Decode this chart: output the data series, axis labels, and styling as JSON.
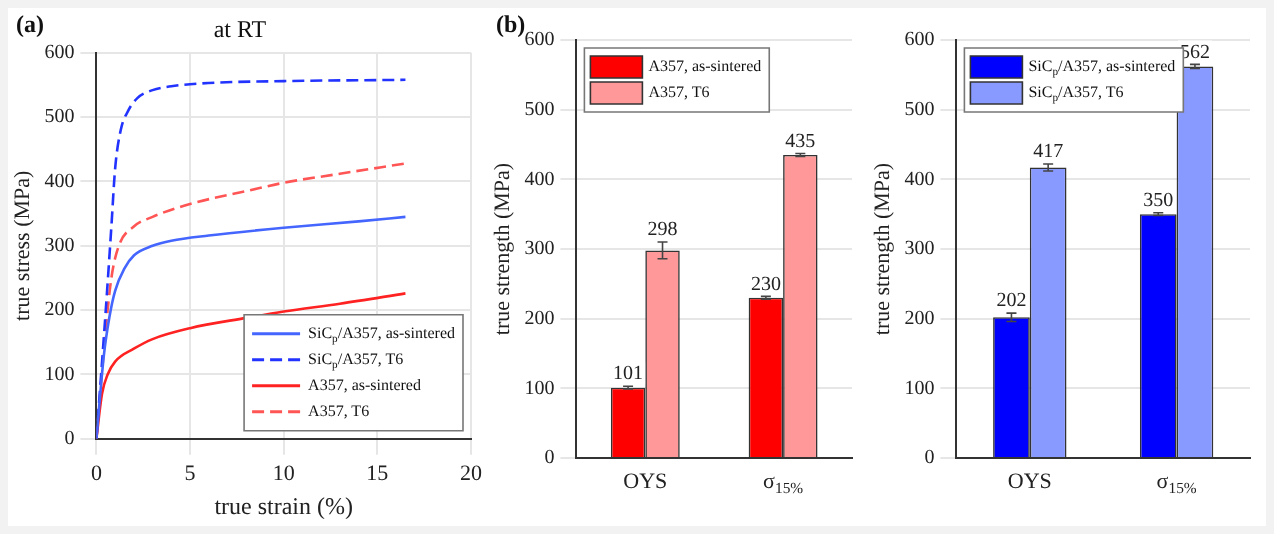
{
  "chart_data": [
    {
      "type": "line",
      "title": "at RT",
      "annotations": [
        "(a)"
      ],
      "xlabel": "true strain (%)",
      "ylabel": "true stress (MPa)",
      "xlim": [
        0,
        20
      ],
      "xticks": [
        0,
        5,
        10,
        15,
        20
      ],
      "ylim": [
        0,
        600
      ],
      "yticks": [
        0,
        100,
        200,
        300,
        400,
        500,
        600
      ],
      "grid": true,
      "legend": "bottom right",
      "marker": "none",
      "series": [
        {
          "name": "SiC$_{p}$/A357, as-sintered",
          "color": "#4466ff",
          "line_style": "solid",
          "x": [
            0,
            0.4,
            0.7,
            1,
            1.5,
            2,
            3,
            4,
            6,
            10,
            14,
            16.5
          ],
          "values": [
            0,
            130,
            190,
            230,
            265,
            285,
            300,
            308,
            316,
            328,
            338,
            345
          ]
        },
        {
          "name": "SiC$_{p}$/A357, T6",
          "color": "#2233ff",
          "line_style": "dashed",
          "x": [
            0,
            0.5,
            0.8,
            1,
            1.3,
            1.7,
            2.2,
            3,
            4,
            6,
            10,
            16.5
          ],
          "values": [
            0,
            200,
            330,
            420,
            480,
            510,
            530,
            542,
            548,
            553,
            556,
            558
          ]
        },
        {
          "name": "A357, as-sintered",
          "color": "#ff2222",
          "line_style": "solid",
          "x": [
            0,
            0.3,
            0.6,
            1,
            2,
            3,
            5,
            8,
            10,
            13,
            16.5
          ],
          "values": [
            0,
            70,
            100,
            120,
            140,
            155,
            172,
            188,
            198,
            210,
            226
          ]
        },
        {
          "name": "A357, T6",
          "color": "#ff5555",
          "line_style": "dashed",
          "x": [
            0,
            0.5,
            0.8,
            1.2,
            2,
            3,
            5,
            8,
            10,
            13,
            16.5
          ],
          "values": [
            0,
            170,
            250,
            300,
            330,
            345,
            365,
            385,
            398,
            412,
            428
          ]
        }
      ]
    },
    {
      "type": "bar",
      "annotations": [
        "(b)"
      ],
      "ylabel": "true strength (MPa)",
      "categories": [
        "OYS",
        "σ$_{15%}$"
      ],
      "ylim": [
        0,
        600
      ],
      "yticks": [
        0,
        100,
        200,
        300,
        400,
        500,
        600
      ],
      "grid": "y",
      "legend": "top left",
      "data_labels": true,
      "series": [
        {
          "name": "A357, as-sintered",
          "color": "#ff0000",
          "values": [
            101,
            230
          ],
          "errors": [
            2,
            2
          ]
        },
        {
          "name": "A357, T6",
          "color": "#ff9999",
          "values": [
            298,
            435
          ],
          "errors": [
            12,
            2
          ]
        }
      ]
    },
    {
      "type": "bar",
      "ylabel": "true strength (MPa)",
      "categories": [
        "OYS",
        "σ$_{15%}$"
      ],
      "ylim": [
        0,
        600
      ],
      "yticks": [
        0,
        100,
        200,
        300,
        400,
        500,
        600
      ],
      "grid": "y",
      "legend": "top left",
      "data_labels": true,
      "series": [
        {
          "name": "SiC$_{p}$/A357, as-sintered",
          "color": "#0000ff",
          "values": [
            202,
            350
          ],
          "errors": [
            6,
            2
          ]
        },
        {
          "name": "SiC$_{p}$/A357, T6",
          "color": "#8899ff",
          "values": [
            417,
            562
          ],
          "errors": [
            5,
            3
          ]
        }
      ]
    }
  ]
}
